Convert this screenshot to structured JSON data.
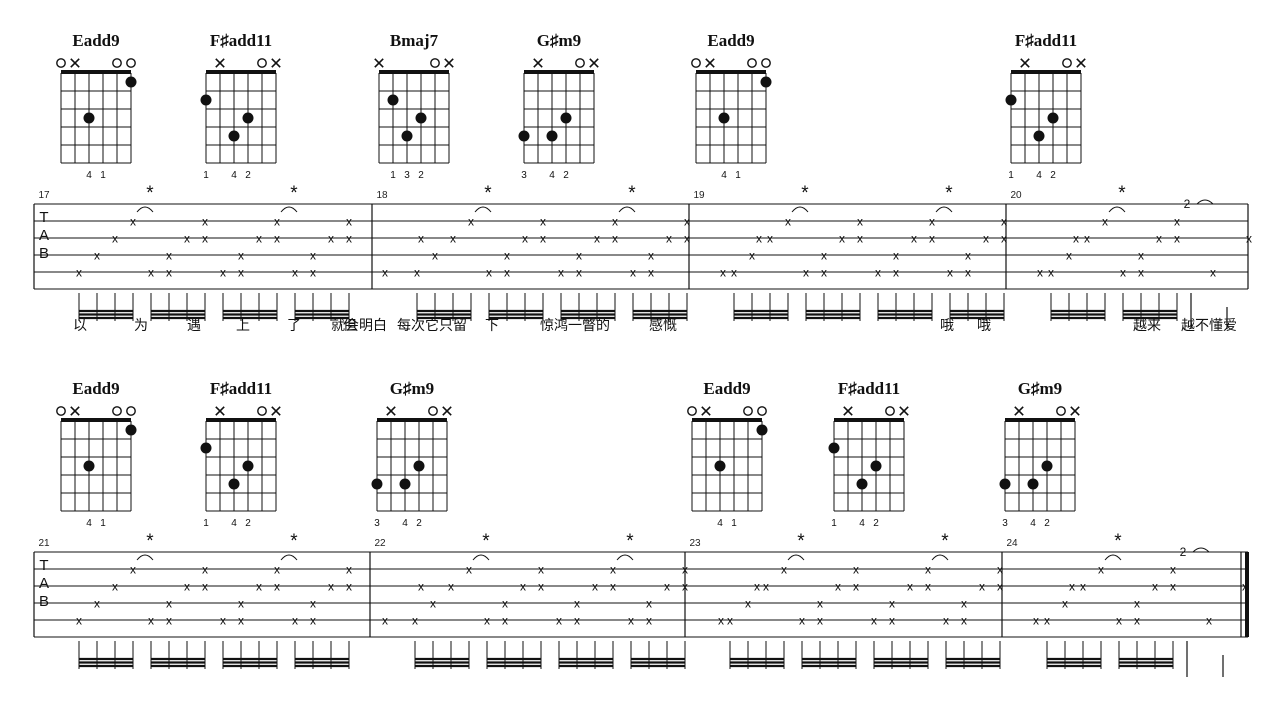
{
  "tab_label": [
    "T",
    "A",
    "B"
  ],
  "palm_mark": "✕",
  "open_mark": "○",
  "note_mark": "x",
  "accent_mark": "*",
  "chord_shapes": {
    "Eadd9": {
      "name": "Eadd9",
      "marks": [
        "o",
        "x",
        "",
        "",
        "o",
        "o"
      ],
      "dots": [
        [
          2,
          3
        ],
        [
          5,
          1
        ]
      ],
      "fingers": [
        "",
        "",
        "4",
        "1",
        "",
        ""
      ]
    },
    "F#add11": {
      "name": "F♯add11",
      "marks": [
        "",
        "x",
        "",
        "",
        "o",
        "x"
      ],
      "dots": [
        [
          0,
          2
        ],
        [
          2,
          4
        ],
        [
          3,
          3
        ]
      ],
      "fingers": [
        "1",
        "",
        "4",
        "2",
        "",
        ""
      ]
    },
    "Bmaj7": {
      "name": "Bmaj7",
      "marks": [
        "x",
        "",
        "",
        "",
        "o",
        "x"
      ],
      "dots": [
        [
          1,
          2
        ],
        [
          2,
          4
        ],
        [
          3,
          3
        ]
      ],
      "fingers": [
        "",
        "1",
        "3",
        "2",
        "",
        ""
      ]
    },
    "G#m9": {
      "name": "G♯m9",
      "marks": [
        "",
        "x",
        "",
        "",
        "o",
        "x"
      ],
      "dots": [
        [
          0,
          4
        ],
        [
          2,
          4
        ],
        [
          3,
          3
        ]
      ],
      "fingers": [
        "3",
        "",
        "4",
        "2",
        "",
        ""
      ]
    }
  },
  "rows": [
    {
      "chords": [
        {
          "shape": "Eadd9"
        },
        {
          "shape": "F#add11"
        },
        {
          "shape": "Bmaj7"
        },
        {
          "shape": "G#m9"
        },
        {
          "shape": "Eadd9"
        },
        {
          "shape": "F#add11"
        }
      ],
      "measures": [
        {
          "number": "17",
          "groups": 4,
          "last": false
        },
        {
          "number": "18",
          "groups": 4,
          "last": false
        },
        {
          "number": "19",
          "groups": 4,
          "last": false
        },
        {
          "number": "20",
          "groups": 2,
          "last": true,
          "fret": "2"
        }
      ],
      "lyrics": [
        {
          "text": "以"
        },
        {
          "text": "为"
        },
        {
          "text": "遇"
        },
        {
          "text": "上"
        },
        {
          "text": "了"
        },
        {
          "text": "就会明白"
        },
        {
          "text": "但"
        },
        {
          "text": "每次它只留"
        },
        {
          "text": "下"
        },
        {
          "text": "惊鸿一瞥的"
        },
        {
          "text": "感慨"
        },
        {
          "text": "哦"
        },
        {
          "text": "哦"
        },
        {
          "text": "越来"
        },
        {
          "text": "越不懂爱"
        }
      ]
    },
    {
      "chords": [
        {
          "shape": "Eadd9"
        },
        {
          "shape": "F#add11"
        },
        {
          "shape": "G#m9"
        },
        {
          "shape": "Eadd9"
        },
        {
          "shape": "F#add11"
        },
        {
          "shape": "G#m9"
        }
      ],
      "measures": [
        {
          "number": "21",
          "groups": 4,
          "last": false
        },
        {
          "number": "22",
          "groups": 4,
          "last": false
        },
        {
          "number": "23",
          "groups": 4,
          "last": false
        },
        {
          "number": "24",
          "groups": 2,
          "last": true,
          "fret": "2"
        }
      ],
      "lyrics": []
    }
  ]
}
